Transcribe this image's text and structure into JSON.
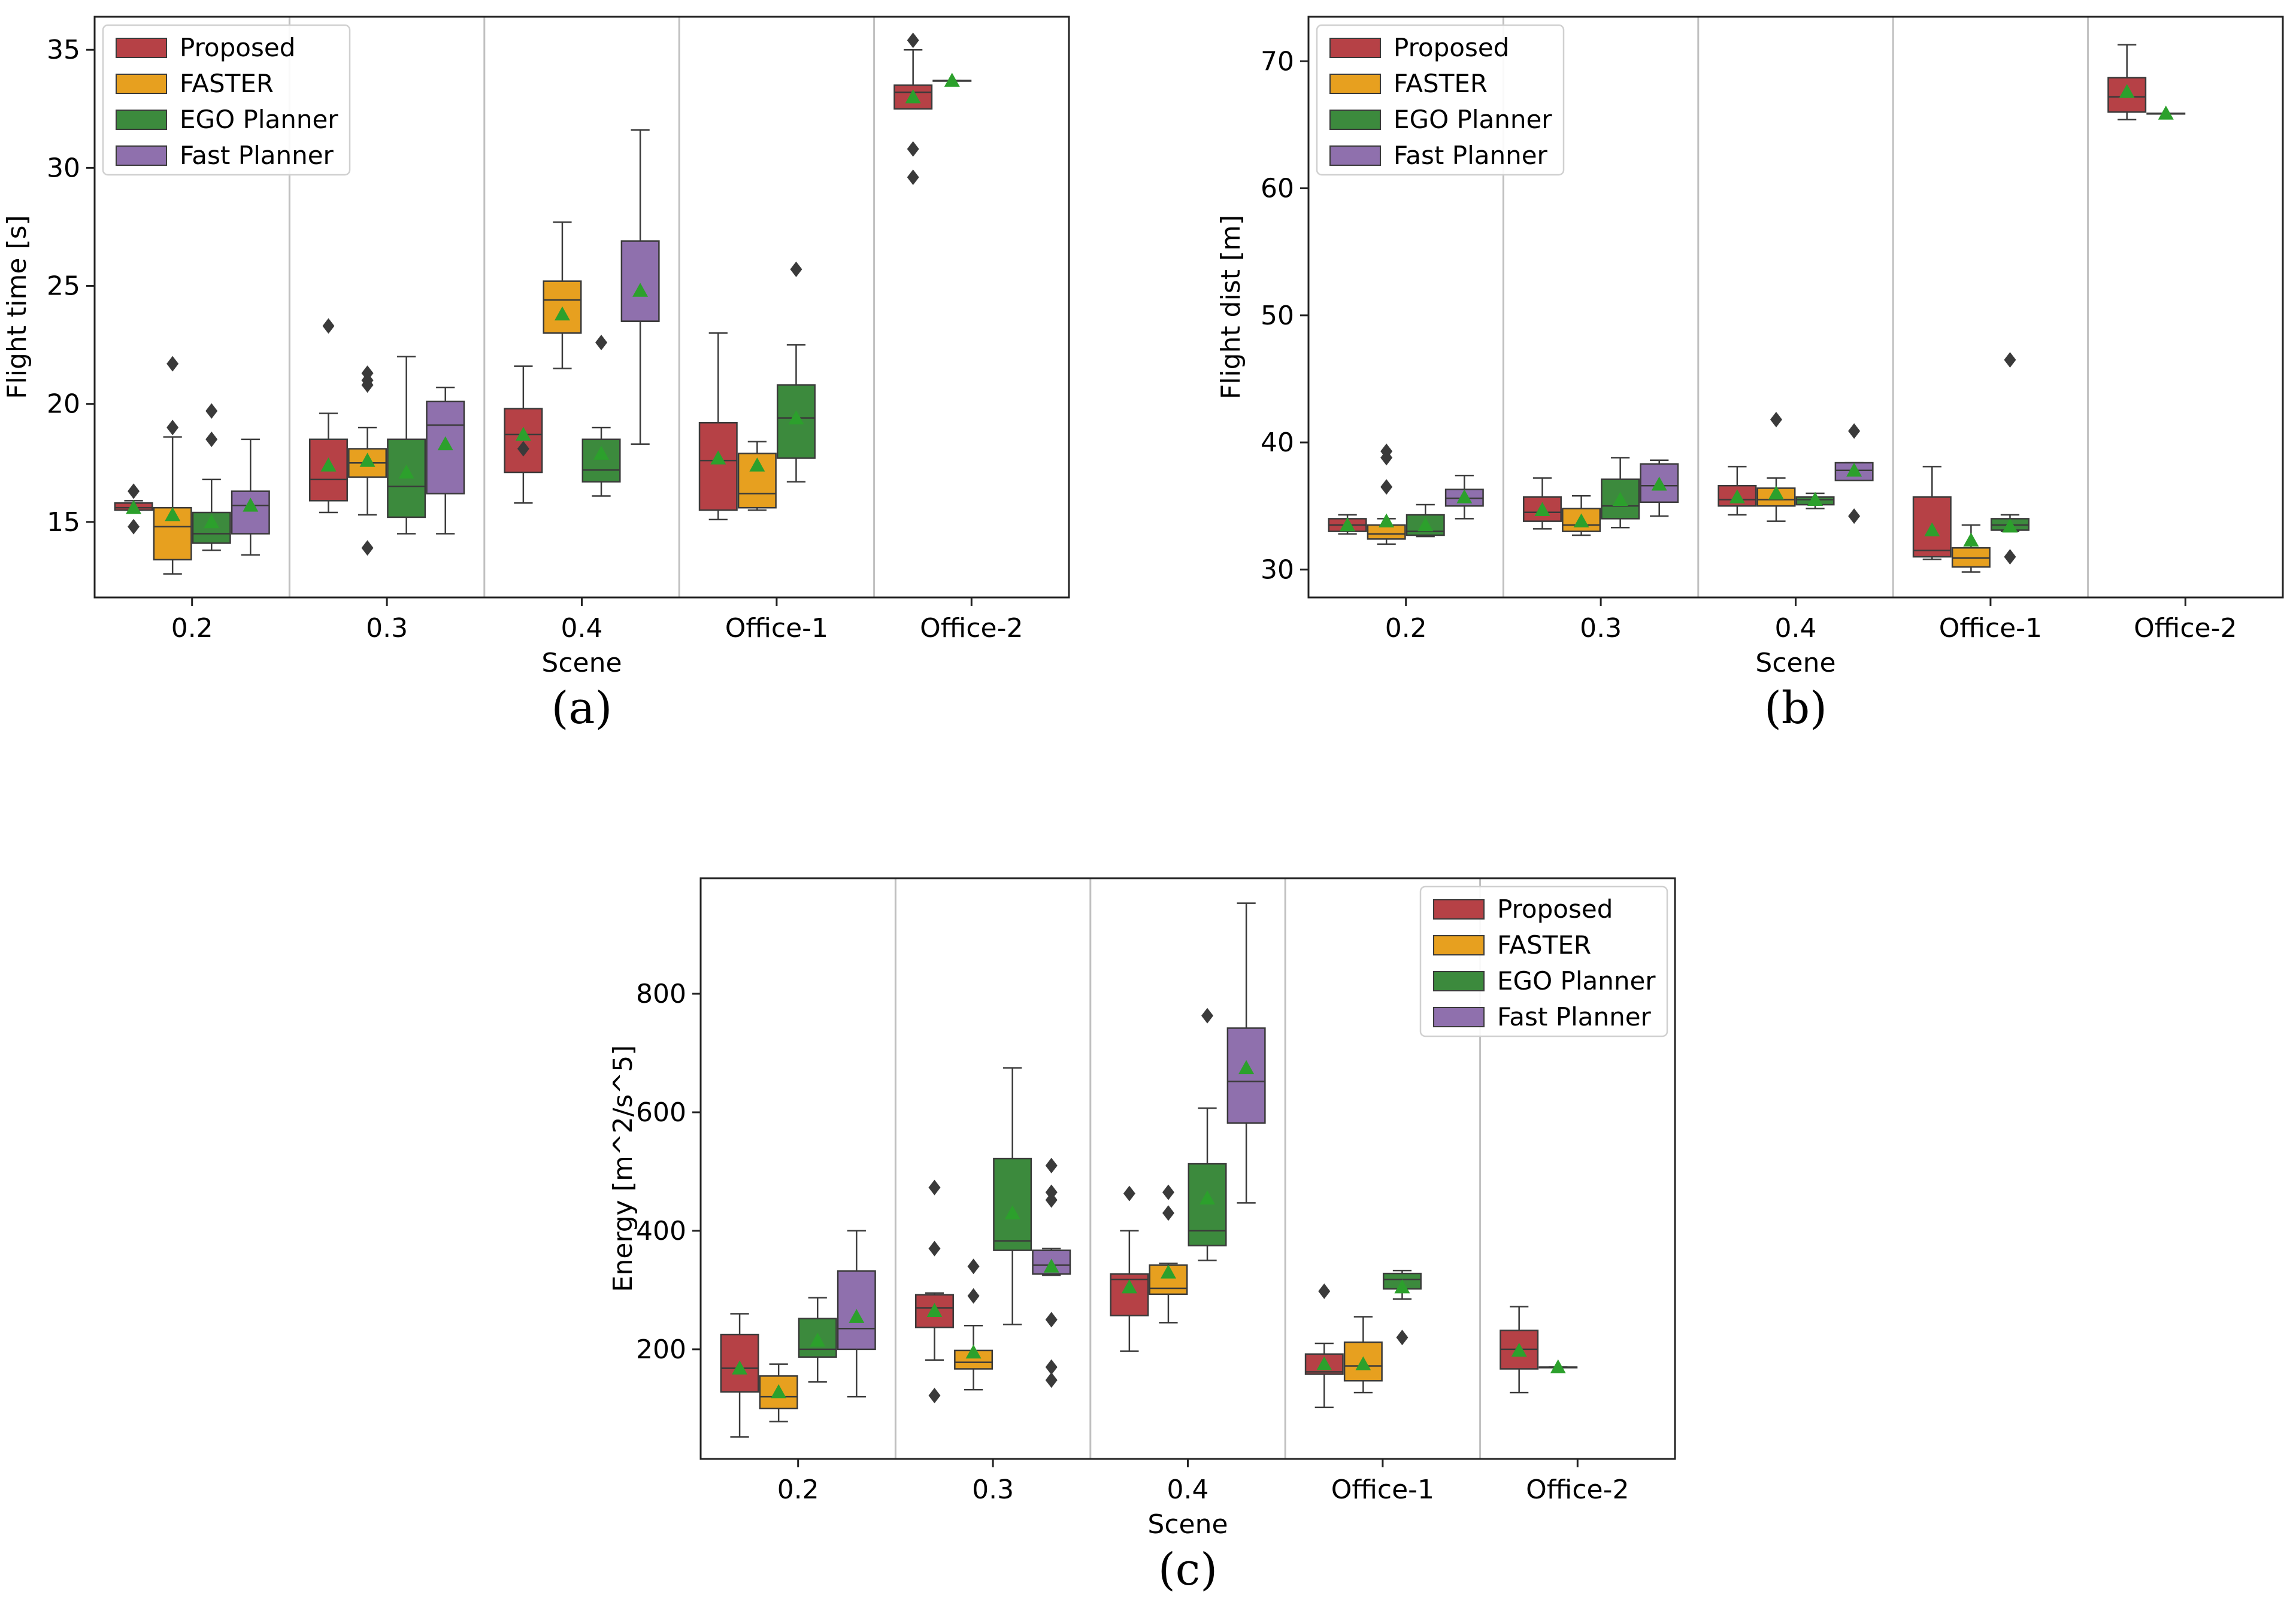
{
  "colors": {
    "series": [
      "#b64146",
      "#e7a01f",
      "#3c8a3d",
      "#8f70ad"
    ],
    "mean": "#2ca02c",
    "line": "#3a3a3a",
    "separator": "#c0c0c0"
  },
  "chart_data": [
    {
      "id": "a",
      "type": "box",
      "panel_label": "(a)",
      "xlabel": "Scene",
      "ylabel": "Flight time [s]",
      "categories": [
        "0.2",
        "0.3",
        "0.4",
        "Office-1",
        "Office-2"
      ],
      "ylim": [
        11.8,
        36.4
      ],
      "yticks": [
        15,
        20,
        25,
        30,
        35
      ],
      "legend": {
        "position": "top-left",
        "entries": [
          "Proposed",
          "FASTER",
          "EGO Planner",
          "Fast Planner"
        ]
      },
      "series": [
        {
          "name": "Proposed",
          "boxes": [
            {
              "cat": 0,
              "q1": 15.5,
              "med": 15.6,
              "q3": 15.8,
              "lo": 15.5,
              "hi": 15.9,
              "mean": 15.6,
              "out": [
                16.3,
                14.8
              ]
            },
            {
              "cat": 1,
              "q1": 15.9,
              "med": 16.8,
              "q3": 18.5,
              "lo": 15.4,
              "hi": 19.6,
              "mean": 17.4,
              "out": [
                23.3
              ]
            },
            {
              "cat": 2,
              "q1": 17.1,
              "med": 18.7,
              "q3": 19.8,
              "lo": 15.8,
              "hi": 21.6,
              "mean": 18.7,
              "out": [
                18.1
              ]
            },
            {
              "cat": 3,
              "q1": 15.5,
              "med": 17.6,
              "q3": 19.2,
              "lo": 15.1,
              "hi": 23.0,
              "mean": 17.7,
              "out": []
            },
            {
              "cat": 4,
              "q1": 32.5,
              "med": 33.2,
              "q3": 33.5,
              "lo": 32.5,
              "hi": 35.0,
              "mean": 33.0,
              "out": [
                35.4,
                30.8,
                29.6
              ]
            }
          ]
        },
        {
          "name": "FASTER",
          "boxes": [
            {
              "cat": 0,
              "q1": 13.4,
              "med": 14.8,
              "q3": 15.6,
              "lo": 12.8,
              "hi": 18.6,
              "mean": 15.3,
              "out": [
                21.7,
                19.0
              ]
            },
            {
              "cat": 1,
              "q1": 16.9,
              "med": 17.5,
              "q3": 18.1,
              "lo": 15.3,
              "hi": 19.0,
              "mean": 17.6,
              "out": [
                21.3,
                21.0,
                20.8,
                13.9
              ]
            },
            {
              "cat": 2,
              "q1": 23.0,
              "med": 24.4,
              "q3": 25.2,
              "lo": 21.5,
              "hi": 27.7,
              "mean": 23.8,
              "out": []
            },
            {
              "cat": 3,
              "q1": 15.6,
              "med": 16.2,
              "q3": 17.9,
              "lo": 15.5,
              "hi": 18.4,
              "mean": 17.4,
              "out": []
            },
            {
              "cat": 4,
              "q1": 33.7,
              "med": 33.7,
              "q3": 33.7,
              "lo": 33.7,
              "hi": 33.7,
              "mean": 33.7,
              "out": []
            }
          ]
        },
        {
          "name": "EGO Planner",
          "boxes": [
            {
              "cat": 0,
              "q1": 14.1,
              "med": 14.5,
              "q3": 15.4,
              "lo": 13.8,
              "hi": 16.8,
              "mean": 15.0,
              "out": [
                19.7,
                18.5
              ]
            },
            {
              "cat": 1,
              "q1": 15.2,
              "med": 16.5,
              "q3": 18.5,
              "lo": 14.5,
              "hi": 22.0,
              "mean": 17.1,
              "out": []
            },
            {
              "cat": 2,
              "q1": 16.7,
              "med": 17.2,
              "q3": 18.5,
              "lo": 16.1,
              "hi": 19.0,
              "mean": 17.9,
              "out": [
                22.6
              ]
            },
            {
              "cat": 3,
              "q1": 17.7,
              "med": 19.4,
              "q3": 20.8,
              "lo": 16.7,
              "hi": 22.5,
              "mean": 19.4,
              "out": [
                25.7
              ]
            }
          ]
        },
        {
          "name": "Fast Planner",
          "boxes": [
            {
              "cat": 0,
              "q1": 14.5,
              "med": 15.7,
              "q3": 16.3,
              "lo": 13.6,
              "hi": 18.5,
              "mean": 15.7,
              "out": []
            },
            {
              "cat": 1,
              "q1": 16.2,
              "med": 19.1,
              "q3": 20.1,
              "lo": 14.5,
              "hi": 20.7,
              "mean": 18.3,
              "out": []
            },
            {
              "cat": 2,
              "q1": 23.5,
              "med": 23.5,
              "q3": 26.9,
              "lo": 18.3,
              "hi": 31.6,
              "mean": 24.8,
              "out": []
            }
          ]
        }
      ]
    },
    {
      "id": "b",
      "type": "box",
      "panel_label": "(b)",
      "xlabel": "Scene",
      "ylabel": "Flight dist [m]",
      "categories": [
        "0.2",
        "0.3",
        "0.4",
        "Office-1",
        "Office-2"
      ],
      "ylim": [
        27.8,
        73.5
      ],
      "yticks": [
        30,
        40,
        50,
        60,
        70
      ],
      "legend": {
        "position": "top-left",
        "entries": [
          "Proposed",
          "FASTER",
          "EGO Planner",
          "Fast Planner"
        ]
      },
      "series": [
        {
          "name": "Proposed",
          "boxes": [
            {
              "cat": 0,
              "q1": 33.0,
              "med": 33.5,
              "q3": 34.0,
              "lo": 32.8,
              "hi": 34.3,
              "mean": 33.5,
              "out": []
            },
            {
              "cat": 1,
              "q1": 33.8,
              "med": 34.5,
              "q3": 35.7,
              "lo": 33.2,
              "hi": 37.2,
              "mean": 34.7,
              "out": []
            },
            {
              "cat": 2,
              "q1": 35.0,
              "med": 35.5,
              "q3": 36.6,
              "lo": 34.3,
              "hi": 38.1,
              "mean": 35.7,
              "out": []
            },
            {
              "cat": 3,
              "q1": 31.0,
              "med": 31.5,
              "q3": 35.7,
              "lo": 30.8,
              "hi": 38.1,
              "mean": 33.1,
              "out": []
            },
            {
              "cat": 4,
              "q1": 66.0,
              "med": 67.2,
              "q3": 68.7,
              "lo": 65.4,
              "hi": 71.3,
              "mean": 67.6,
              "out": []
            }
          ]
        },
        {
          "name": "FASTER",
          "boxes": [
            {
              "cat": 0,
              "q1": 32.4,
              "med": 32.8,
              "q3": 33.5,
              "lo": 32.0,
              "hi": 34.0,
              "mean": 33.8,
              "out": [
                39.3,
                38.8,
                36.5
              ]
            },
            {
              "cat": 1,
              "q1": 33.0,
              "med": 33.5,
              "q3": 34.8,
              "lo": 32.7,
              "hi": 35.8,
              "mean": 33.8,
              "out": []
            },
            {
              "cat": 2,
              "q1": 35.0,
              "med": 35.5,
              "q3": 36.4,
              "lo": 33.8,
              "hi": 37.2,
              "mean": 36.0,
              "out": [
                41.8
              ]
            },
            {
              "cat": 3,
              "q1": 30.2,
              "med": 30.9,
              "q3": 31.7,
              "lo": 29.8,
              "hi": 33.5,
              "mean": 32.3,
              "out": []
            },
            {
              "cat": 4,
              "q1": 65.9,
              "med": 65.9,
              "q3": 65.9,
              "lo": 65.9,
              "hi": 65.9,
              "mean": 65.9,
              "out": []
            }
          ]
        },
        {
          "name": "EGO Planner",
          "boxes": [
            {
              "cat": 0,
              "q1": 32.7,
              "med": 33.0,
              "q3": 34.3,
              "lo": 32.6,
              "hi": 35.1,
              "mean": 33.5,
              "out": []
            },
            {
              "cat": 1,
              "q1": 34.0,
              "med": 35.0,
              "q3": 37.1,
              "lo": 33.3,
              "hi": 38.8,
              "mean": 35.5,
              "out": []
            },
            {
              "cat": 2,
              "q1": 35.1,
              "med": 35.5,
              "q3": 35.7,
              "lo": 34.8,
              "hi": 36.0,
              "mean": 35.5,
              "out": []
            },
            {
              "cat": 3,
              "q1": 33.1,
              "med": 33.5,
              "q3": 34.0,
              "lo": 33.0,
              "hi": 34.3,
              "mean": 33.4,
              "out": [
                46.5,
                31.0
              ]
            }
          ]
        },
        {
          "name": "Fast Planner",
          "boxes": [
            {
              "cat": 0,
              "q1": 35.0,
              "med": 35.6,
              "q3": 36.3,
              "lo": 34.0,
              "hi": 37.4,
              "mean": 35.7,
              "out": []
            },
            {
              "cat": 1,
              "q1": 35.3,
              "med": 36.6,
              "q3": 38.3,
              "lo": 34.2,
              "hi": 38.6,
              "mean": 36.7,
              "out": []
            },
            {
              "cat": 2,
              "q1": 37.0,
              "med": 37.8,
              "q3": 38.4,
              "lo": 37.0,
              "hi": 38.4,
              "mean": 37.8,
              "out": [
                40.9,
                34.2
              ]
            }
          ]
        }
      ]
    },
    {
      "id": "c",
      "type": "box",
      "panel_label": "(c)",
      "xlabel": "Scene",
      "ylabel": "Energy [m^2/s^5]",
      "categories": [
        "0.2",
        "0.3",
        "0.4",
        "Office-1",
        "Office-2"
      ],
      "ylim": [
        15,
        995
      ],
      "yticks": [
        200,
        400,
        600,
        800
      ],
      "legend": {
        "position": "top-right",
        "entries": [
          "Proposed",
          "FASTER",
          "EGO Planner",
          "Fast Planner"
        ]
      },
      "series": [
        {
          "name": "Proposed",
          "boxes": [
            {
              "cat": 0,
              "q1": 128,
              "med": 168,
              "q3": 225,
              "lo": 52,
              "hi": 260,
              "mean": 168,
              "out": []
            },
            {
              "cat": 1,
              "q1": 237,
              "med": 270,
              "q3": 292,
              "lo": 182,
              "hi": 295,
              "mean": 265,
              "out": [
                473,
                370,
                122
              ]
            },
            {
              "cat": 2,
              "q1": 257,
              "med": 318,
              "q3": 327,
              "lo": 197,
              "hi": 400,
              "mean": 305,
              "out": [
                463
              ]
            },
            {
              "cat": 3,
              "q1": 158,
              "med": 162,
              "q3": 192,
              "lo": 102,
              "hi": 210,
              "mean": 175,
              "out": [
                298
              ]
            },
            {
              "cat": 4,
              "q1": 167,
              "med": 200,
              "q3": 232,
              "lo": 127,
              "hi": 272,
              "mean": 198,
              "out": []
            }
          ]
        },
        {
          "name": "FASTER",
          "boxes": [
            {
              "cat": 0,
              "q1": 100,
              "med": 120,
              "q3": 155,
              "lo": 78,
              "hi": 175,
              "mean": 128,
              "out": []
            },
            {
              "cat": 1,
              "q1": 167,
              "med": 178,
              "q3": 198,
              "lo": 132,
              "hi": 240,
              "mean": 195,
              "out": [
                340,
                290
              ]
            },
            {
              "cat": 2,
              "q1": 293,
              "med": 303,
              "q3": 342,
              "lo": 245,
              "hi": 345,
              "mean": 330,
              "out": [
                465,
                430
              ]
            },
            {
              "cat": 3,
              "q1": 147,
              "med": 172,
              "q3": 212,
              "lo": 127,
              "hi": 255,
              "mean": 175,
              "out": []
            },
            {
              "cat": 4,
              "q1": 170,
              "med": 170,
              "q3": 170,
              "lo": 170,
              "hi": 170,
              "mean": 170,
              "out": []
            }
          ]
        },
        {
          "name": "EGO Planner",
          "boxes": [
            {
              "cat": 0,
              "q1": 187,
              "med": 200,
              "q3": 252,
              "lo": 145,
              "hi": 287,
              "mean": 215,
              "out": []
            },
            {
              "cat": 1,
              "q1": 367,
              "med": 383,
              "q3": 522,
              "lo": 242,
              "hi": 675,
              "mean": 430,
              "out": []
            },
            {
              "cat": 2,
              "q1": 375,
              "med": 400,
              "q3": 513,
              "lo": 350,
              "hi": 607,
              "mean": 455,
              "out": [
                763
              ]
            },
            {
              "cat": 3,
              "q1": 302,
              "med": 318,
              "q3": 328,
              "lo": 285,
              "hi": 333,
              "mean": 305,
              "out": [
                220
              ]
            }
          ]
        },
        {
          "name": "Fast Planner",
          "boxes": [
            {
              "cat": 0,
              "q1": 200,
              "med": 235,
              "q3": 332,
              "lo": 120,
              "hi": 400,
              "mean": 255,
              "out": []
            },
            {
              "cat": 1,
              "q1": 327,
              "med": 342,
              "q3": 367,
              "lo": 325,
              "hi": 370,
              "mean": 340,
              "out": [
                510,
                465,
                452,
                250,
                170,
                148
              ]
            },
            {
              "cat": 2,
              "q1": 582,
              "med": 652,
              "q3": 742,
              "lo": 447,
              "hi": 953,
              "mean": 675,
              "out": []
            }
          ]
        }
      ]
    }
  ]
}
